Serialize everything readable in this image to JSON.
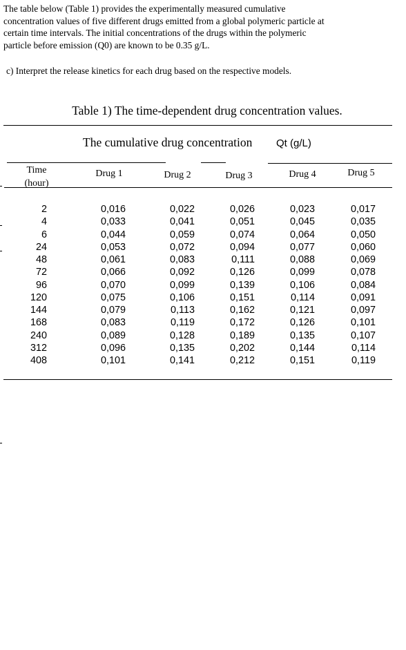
{
  "intro": {
    "text": "The table below (Table 1) provides the experimentally measured cumulative concentration values of five different drugs emitted from a global polymeric particle at certain time intervals. The initial concentrations of the drugs within the polymeric particle before emission (Q0) are known to be 0.35 g/L."
  },
  "question": {
    "text": "c) Interpret the release kinetics for each drug based on the respective models."
  },
  "table": {
    "caption": "Table 1) The time-dependent drug concentration values.",
    "subcaption": "The cumulative drug concentration",
    "unit": "Qt (g/L)",
    "headers": {
      "time": "Time",
      "time_unit": "(hour)",
      "drug1": "Drug 1",
      "drug2": "Drug 2",
      "drug3": "Drug 3",
      "drug4": "Drug 4",
      "drug5": "Drug 5"
    },
    "columns": {
      "time": [
        "2",
        "4",
        "6",
        "24",
        "48",
        "72",
        "96",
        "120",
        "144",
        "168",
        "240",
        "312",
        "408"
      ],
      "drug1": [
        "0,016",
        "0,033",
        "0,044",
        "0,053",
        "0,061",
        "0,066",
        "0,070",
        "0,075",
        "0,079",
        "0,083",
        "0,089",
        "0,096",
        "0,101"
      ],
      "drug2": [
        "0,022",
        "0,041",
        "0,059",
        "0,072",
        "0,083",
        "0,092",
        "0,099",
        "0,106",
        "0,113",
        "0,119",
        "0,128",
        "0,135",
        "0,141"
      ],
      "drug3": [
        "0,026",
        "0,051",
        "0,074",
        "0,094",
        "0,111",
        "0,126",
        "0,139",
        "0,151",
        "0,162",
        "0,172",
        "0,189",
        "0,202",
        "0,212"
      ],
      "drug4": [
        "0,023",
        "0,045",
        "0,064",
        "0,077",
        "0,088",
        "0,099",
        "0,106",
        "0,114",
        "0,121",
        "0,126",
        "0,135",
        "0,144",
        "0,151"
      ],
      "drug5": [
        "0,017",
        "0,035",
        "0,050",
        "0,060",
        "0,069",
        "0,078",
        "0,084",
        "0,091",
        "0,097",
        "0,101",
        "0,107",
        "0,114",
        "0,119"
      ]
    }
  }
}
